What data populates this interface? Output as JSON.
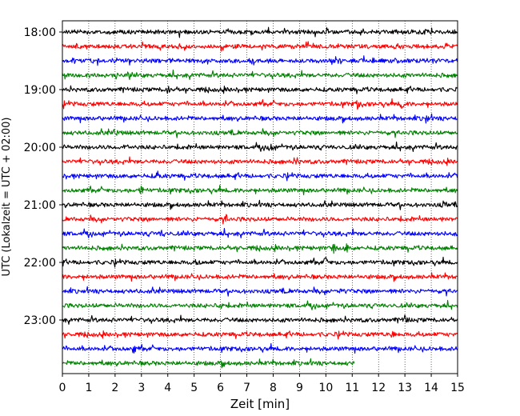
{
  "chart_data": {
    "type": "line",
    "title": "",
    "xlabel": "Zeit  [min]",
    "ylabel": "UTC (Lokalzeit = UTC + 02:00)",
    "xlim": [
      0,
      15
    ],
    "x_ticks": [
      "0",
      "1",
      "2",
      "3",
      "4",
      "5",
      "6",
      "7",
      "8",
      "9",
      "10",
      "11",
      "12",
      "13",
      "14",
      "15"
    ],
    "y_ticks": [
      {
        "label": "18:00",
        "row": 0
      },
      {
        "label": "19:00",
        "row": 4
      },
      {
        "label": "20:00",
        "row": 8
      },
      {
        "label": "21:00",
        "row": 12
      },
      {
        "label": "22:00",
        "row": 16
      },
      {
        "label": "23:00",
        "row": 20
      }
    ],
    "grid": "vertical dotted at each minute",
    "trace_colors": [
      "#000000",
      "#ff0000",
      "#0000ff",
      "#008000"
    ],
    "rows": [
      {
        "start": "18:00",
        "color": "#000000",
        "end_min": 15
      },
      {
        "start": "18:15",
        "color": "#ff0000",
        "end_min": 15
      },
      {
        "start": "18:30",
        "color": "#0000ff",
        "end_min": 15
      },
      {
        "start": "18:45",
        "color": "#008000",
        "end_min": 15
      },
      {
        "start": "19:00",
        "color": "#000000",
        "end_min": 15
      },
      {
        "start": "19:15",
        "color": "#ff0000",
        "end_min": 15
      },
      {
        "start": "19:30",
        "color": "#0000ff",
        "end_min": 15
      },
      {
        "start": "19:45",
        "color": "#008000",
        "end_min": 15
      },
      {
        "start": "20:00",
        "color": "#000000",
        "end_min": 15
      },
      {
        "start": "20:15",
        "color": "#ff0000",
        "end_min": 15
      },
      {
        "start": "20:30",
        "color": "#0000ff",
        "end_min": 15
      },
      {
        "start": "20:45",
        "color": "#008000",
        "end_min": 15
      },
      {
        "start": "21:00",
        "color": "#000000",
        "end_min": 15
      },
      {
        "start": "21:15",
        "color": "#ff0000",
        "end_min": 15
      },
      {
        "start": "21:30",
        "color": "#0000ff",
        "end_min": 15
      },
      {
        "start": "21:45",
        "color": "#008000",
        "end_min": 15
      },
      {
        "start": "22:00",
        "color": "#000000",
        "end_min": 15
      },
      {
        "start": "22:15",
        "color": "#ff0000",
        "end_min": 15
      },
      {
        "start": "22:30",
        "color": "#0000ff",
        "end_min": 15
      },
      {
        "start": "22:45",
        "color": "#008000",
        "end_min": 15
      },
      {
        "start": "23:00",
        "color": "#000000",
        "end_min": 15
      },
      {
        "start": "23:15",
        "color": "#ff0000",
        "end_min": 15
      },
      {
        "start": "23:30",
        "color": "#0000ff",
        "end_min": 15
      },
      {
        "start": "23:45",
        "color": "#008000",
        "end_min": 11.1
      }
    ],
    "spikes": [
      {
        "row": 0,
        "min": 13.7
      },
      {
        "row": 1,
        "min": 0.6
      },
      {
        "row": 2,
        "min": 0.4
      },
      {
        "row": 2,
        "min": 10.5
      },
      {
        "row": 4,
        "min": 4.0
      },
      {
        "row": 5,
        "min": 11.2
      },
      {
        "row": 5,
        "min": 12.9
      },
      {
        "row": 6,
        "min": 13.8
      },
      {
        "row": 7,
        "min": 2.0
      },
      {
        "row": 8,
        "min": 7.9
      },
      {
        "row": 8,
        "min": 2.4
      },
      {
        "row": 9,
        "min": 8.9
      },
      {
        "row": 10,
        "min": 3.6
      },
      {
        "row": 11,
        "min": 3.0
      },
      {
        "row": 12,
        "min": 14.5
      },
      {
        "row": 13,
        "min": 6.2
      },
      {
        "row": 14,
        "min": 3.8
      },
      {
        "row": 15,
        "min": 10.3
      },
      {
        "row": 15,
        "min": 10.8
      },
      {
        "row": 16,
        "min": 5.1
      },
      {
        "row": 16,
        "min": 10.0
      },
      {
        "row": 18,
        "min": 10.6
      },
      {
        "row": 19,
        "min": 6.0
      },
      {
        "row": 20,
        "min": 13.0
      },
      {
        "row": 21,
        "min": 12.5
      },
      {
        "row": 22,
        "min": 2.7
      },
      {
        "row": 23,
        "min": 6.1
      }
    ]
  }
}
